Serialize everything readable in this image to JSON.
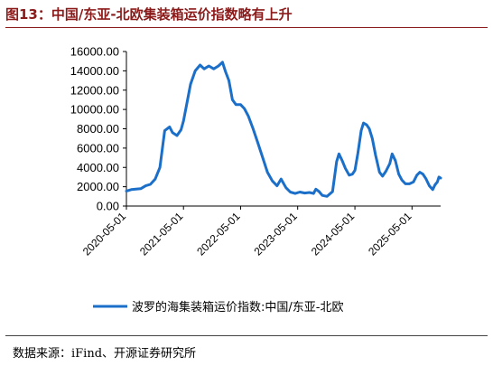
{
  "title": "图13：中国/东亚-北欧集装箱运价指数略有上升",
  "source": "数据来源：iFind、开源证券研究所",
  "colors": {
    "title": "#8b1a1a",
    "line": "#1b6fc8",
    "axis": "#000000"
  },
  "chart_data": {
    "type": "line",
    "title": "",
    "xlabel": "",
    "ylabel": "",
    "grid": false,
    "legend_position": "bottom",
    "ylim": [
      0,
      16000
    ],
    "y_ticks": [
      "0.00",
      "2000.00",
      "4000.00",
      "6000.00",
      "8000.00",
      "10000.00",
      "12000.00",
      "14000.00",
      "16000.00"
    ],
    "x_ticks": [
      "2020-05-01",
      "2021-05-01",
      "2022-05-01",
      "2023-05-01",
      "2024-05-01",
      "2025-05-01"
    ],
    "x_range": [
      "2020-05-01",
      "2025-10-31"
    ],
    "series": [
      {
        "name": "波罗的海集装箱运价指数:中国/东亚-北欧",
        "points": [
          [
            "2020-05-01",
            1550
          ],
          [
            "2020-06-01",
            1700
          ],
          [
            "2020-07-01",
            1750
          ],
          [
            "2020-08-01",
            1800
          ],
          [
            "2020-09-01",
            2100
          ],
          [
            "2020-10-01",
            2250
          ],
          [
            "2020-11-01",
            2800
          ],
          [
            "2020-12-01",
            4000
          ],
          [
            "2021-01-01",
            7800
          ],
          [
            "2021-02-01",
            8200
          ],
          [
            "2021-02-20",
            7600
          ],
          [
            "2021-03-20",
            7300
          ],
          [
            "2021-04-15",
            7900
          ],
          [
            "2021-05-01",
            8800
          ],
          [
            "2021-05-20",
            10400
          ],
          [
            "2021-06-15",
            12600
          ],
          [
            "2021-07-15",
            14000
          ],
          [
            "2021-08-15",
            14600
          ],
          [
            "2021-09-10",
            14200
          ],
          [
            "2021-10-10",
            14500
          ],
          [
            "2021-11-10",
            14200
          ],
          [
            "2021-12-10",
            14500
          ],
          [
            "2022-01-05",
            14900
          ],
          [
            "2022-01-25",
            13900
          ],
          [
            "2022-02-15",
            13000
          ],
          [
            "2022-03-10",
            11000
          ],
          [
            "2022-04-01",
            10500
          ],
          [
            "2022-05-01",
            10500
          ],
          [
            "2022-05-25",
            10100
          ],
          [
            "2022-06-20",
            9300
          ],
          [
            "2022-07-20",
            8000
          ],
          [
            "2022-08-20",
            6500
          ],
          [
            "2022-09-20",
            5000
          ],
          [
            "2022-10-20",
            3500
          ],
          [
            "2022-11-20",
            2600
          ],
          [
            "2022-12-20",
            2100
          ],
          [
            "2023-01-15",
            2800
          ],
          [
            "2023-02-15",
            1900
          ],
          [
            "2023-03-15",
            1450
          ],
          [
            "2023-04-15",
            1300
          ],
          [
            "2023-05-15",
            1450
          ],
          [
            "2023-06-15",
            1350
          ],
          [
            "2023-07-15",
            1400
          ],
          [
            "2023-08-10",
            1300
          ],
          [
            "2023-08-25",
            1750
          ],
          [
            "2023-09-15",
            1500
          ],
          [
            "2023-10-05",
            1100
          ],
          [
            "2023-11-05",
            1000
          ],
          [
            "2023-12-10",
            1500
          ],
          [
            "2024-01-05",
            4600
          ],
          [
            "2024-01-20",
            5400
          ],
          [
            "2024-02-10",
            4700
          ],
          [
            "2024-03-01",
            3900
          ],
          [
            "2024-03-25",
            3200
          ],
          [
            "2024-04-15",
            3300
          ],
          [
            "2024-05-01",
            3700
          ],
          [
            "2024-05-20",
            5500
          ],
          [
            "2024-06-10",
            7800
          ],
          [
            "2024-06-25",
            8600
          ],
          [
            "2024-07-15",
            8400
          ],
          [
            "2024-08-01",
            8000
          ],
          [
            "2024-08-20",
            7000
          ],
          [
            "2024-09-10",
            5300
          ],
          [
            "2024-10-05",
            3500
          ],
          [
            "2024-10-25",
            3100
          ],
          [
            "2024-11-15",
            3600
          ],
          [
            "2024-12-10",
            4400
          ],
          [
            "2024-12-25",
            5400
          ],
          [
            "2025-01-15",
            4700
          ],
          [
            "2025-02-05",
            3300
          ],
          [
            "2025-02-25",
            2700
          ],
          [
            "2025-03-20",
            2300
          ],
          [
            "2025-04-15",
            2300
          ],
          [
            "2025-05-10",
            2500
          ],
          [
            "2025-06-01",
            3200
          ],
          [
            "2025-06-20",
            3500
          ],
          [
            "2025-07-10",
            3300
          ],
          [
            "2025-07-30",
            2800
          ],
          [
            "2025-08-20",
            2100
          ],
          [
            "2025-09-10",
            1700
          ],
          [
            "2025-09-25",
            2200
          ],
          [
            "2025-10-10",
            2500
          ],
          [
            "2025-10-20",
            3000
          ],
          [
            "2025-10-31",
            2900
          ]
        ]
      }
    ]
  }
}
